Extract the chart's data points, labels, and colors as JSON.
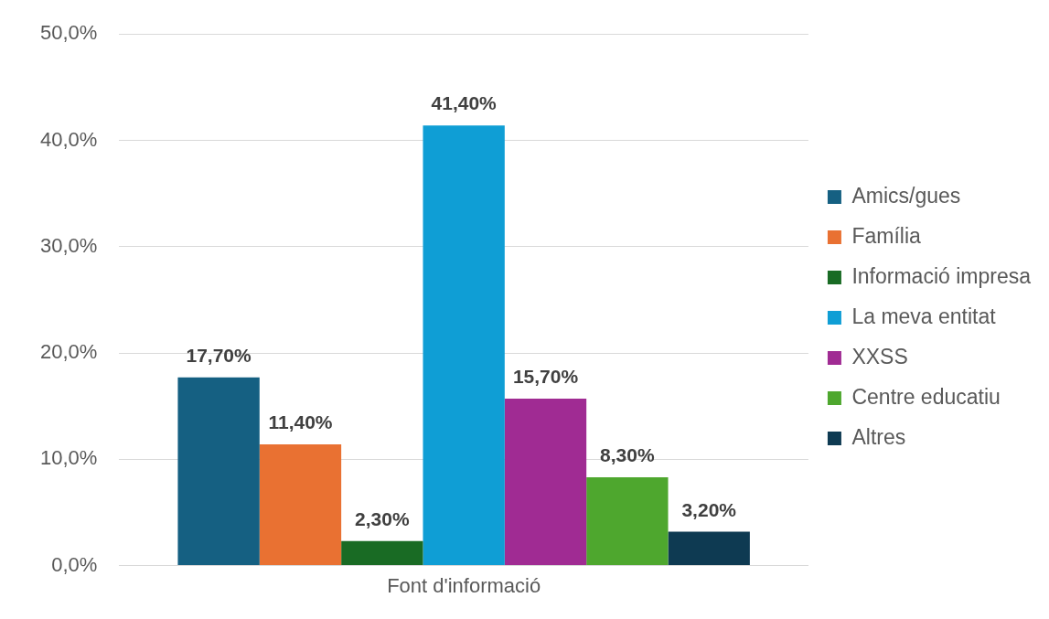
{
  "chart_data": {
    "type": "bar",
    "categories": [
      "Font d'informació"
    ],
    "series": [
      {
        "name": "Amics/gues",
        "color": "#156082",
        "values": [
          17.7
        ],
        "value_labels": [
          "17,70%"
        ]
      },
      {
        "name": "Família",
        "color": "#e97132",
        "values": [
          11.4
        ],
        "value_labels": [
          "11,40%"
        ]
      },
      {
        "name": "Informació impresa",
        "color": "#196b24",
        "values": [
          2.3
        ],
        "value_labels": [
          "2,30%"
        ]
      },
      {
        "name": "La meva entitat",
        "color": "#0f9ed5",
        "values": [
          41.4
        ],
        "value_labels": [
          "41,40%"
        ]
      },
      {
        "name": "XXSS",
        "color": "#a02b93",
        "values": [
          15.7
        ],
        "value_labels": [
          "15,70%"
        ]
      },
      {
        "name": "Centre educatiu",
        "color": "#4ea72e",
        "values": [
          8.3
        ],
        "value_labels": [
          "8,30%"
        ]
      },
      {
        "name": "Altres",
        "color": "#0e3a52",
        "values": [
          3.2
        ],
        "value_labels": [
          "3,20%"
        ]
      }
    ],
    "ylim": [
      0,
      50
    ],
    "yticks": [
      {
        "value": 0,
        "label": "0,0%"
      },
      {
        "value": 10,
        "label": "10,0%"
      },
      {
        "value": 20,
        "label": "20,0%"
      },
      {
        "value": 30,
        "label": "30,0%"
      },
      {
        "value": 40,
        "label": "40,0%"
      },
      {
        "value": 50,
        "label": "50,0%"
      }
    ],
    "grid": "y",
    "legend": "right"
  }
}
